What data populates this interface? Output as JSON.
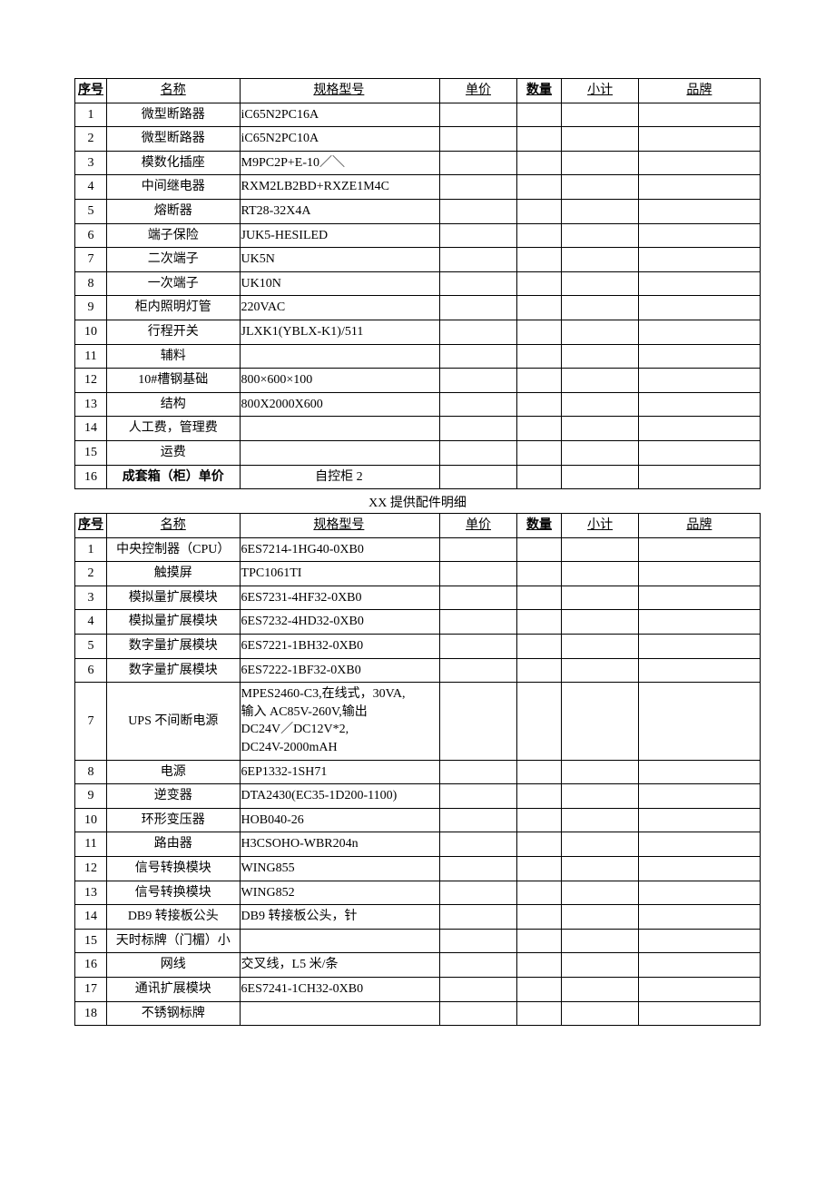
{
  "table1": {
    "headers": {
      "idx": "序号",
      "name": "名称",
      "spec": "规格型号",
      "price": "单价",
      "qty": "数量",
      "sub": "小计",
      "brand": "品牌"
    },
    "rows": [
      {
        "idx": "1",
        "name": "微型断路器",
        "spec": "iC65N2PC16A"
      },
      {
        "idx": "2",
        "name": "微型断路器",
        "spec": "iC65N2PC10A"
      },
      {
        "idx": "3",
        "name": "模数化插座",
        "spec": "M9PC2P+E-10／＼"
      },
      {
        "idx": "4",
        "name": "中间继电器",
        "spec": "RXM2LB2BD+RXZE1M4C"
      },
      {
        "idx": "5",
        "name": "熔断器",
        "spec": "RT28-32X4A"
      },
      {
        "idx": "6",
        "name": "端子保险",
        "spec": " JUK5-HESILED"
      },
      {
        "idx": "7",
        "name": "二次端子",
        "spec": "UK5N"
      },
      {
        "idx": "8",
        "name": "一次端子",
        "spec": "UK10N"
      },
      {
        "idx": "9",
        "name": "柜内照明灯管",
        "spec": "220VAC"
      },
      {
        "idx": "10",
        "name": "行程开关",
        "spec": "JLXK1(YBLX-K1)/511"
      },
      {
        "idx": "11",
        "name": "辅料",
        "spec": ""
      },
      {
        "idx": "12",
        "name": "10#槽钢基础",
        "spec": "800×600×100"
      },
      {
        "idx": "13",
        "name": "结构",
        "spec": "800X2000X600"
      },
      {
        "idx": "14",
        "name": "人工费，管理费",
        "spec": ""
      },
      {
        "idx": "15",
        "name": "运费",
        "spec": ""
      },
      {
        "idx": "16",
        "name": "成套箱（柜）单价",
        "spec": "自控柜 2",
        "bold": true,
        "center_spec": true
      }
    ]
  },
  "section_title": "XX 提供配件明细",
  "table2": {
    "headers": {
      "idx": "序号",
      "name": "名称",
      "spec": "规格型号",
      "price": "单价",
      "qty": "数量",
      "sub": "小计",
      "brand": "品牌"
    },
    "rows": [
      {
        "idx": "1",
        "name": "中央控制器（CPU）",
        "spec": "6ES7214-1HG40-0XB0"
      },
      {
        "idx": "2",
        "name": "触摸屏",
        "spec": "TPC1061TI"
      },
      {
        "idx": "3",
        "name": "模拟量扩展模块",
        "spec": "6ES7231-4HF32-0XB0"
      },
      {
        "idx": "4",
        "name": "模拟量扩展模块",
        "spec": "6ES7232-4HD32-0XB0"
      },
      {
        "idx": "5",
        "name": "数字量扩展模块",
        "spec": "6ES7221-1BH32-0XB0"
      },
      {
        "idx": "6",
        "name": "数字量扩展模块",
        "spec": "6ES7222-1BF32-0XB0"
      },
      {
        "idx": "7",
        "name": "UPS 不间断电源",
        "spec": "MPES2460-C3,在线式，30VA,\n输入 AC85V-260V,输出\nDC24V／DC12V*2,\nDC24V-2000mAH"
      },
      {
        "idx": "8",
        "name": "电源",
        "spec": "6EP1332-1SH71"
      },
      {
        "idx": "9",
        "name": "逆变器",
        "spec": "DTA2430(EC35-1D200-1100)"
      },
      {
        "idx": "10",
        "name": "环形变压器",
        "spec": "HOB040-26"
      },
      {
        "idx": "11",
        "name": "路由器",
        "spec": "H3CSOHO-WBR204n"
      },
      {
        "idx": "12",
        "name": "信号转换模块",
        "spec": "WING855"
      },
      {
        "idx": "13",
        "name": "信号转换模块",
        "spec": "WING852"
      },
      {
        "idx": "14",
        "name": "DB9 转接板公头",
        "spec": "DB9 转接板公头，针"
      },
      {
        "idx": "15",
        "name": "天时标牌（门楣）小",
        "spec": ""
      },
      {
        "idx": "16",
        "name": "网线",
        "spec": "交叉线，L5 米/条"
      },
      {
        "idx": "17",
        "name": "通讯扩展模块",
        "spec": "6ES7241-1CH32-0XB0"
      },
      {
        "idx": "18",
        "name": "不锈钢标牌",
        "spec": ""
      }
    ]
  }
}
